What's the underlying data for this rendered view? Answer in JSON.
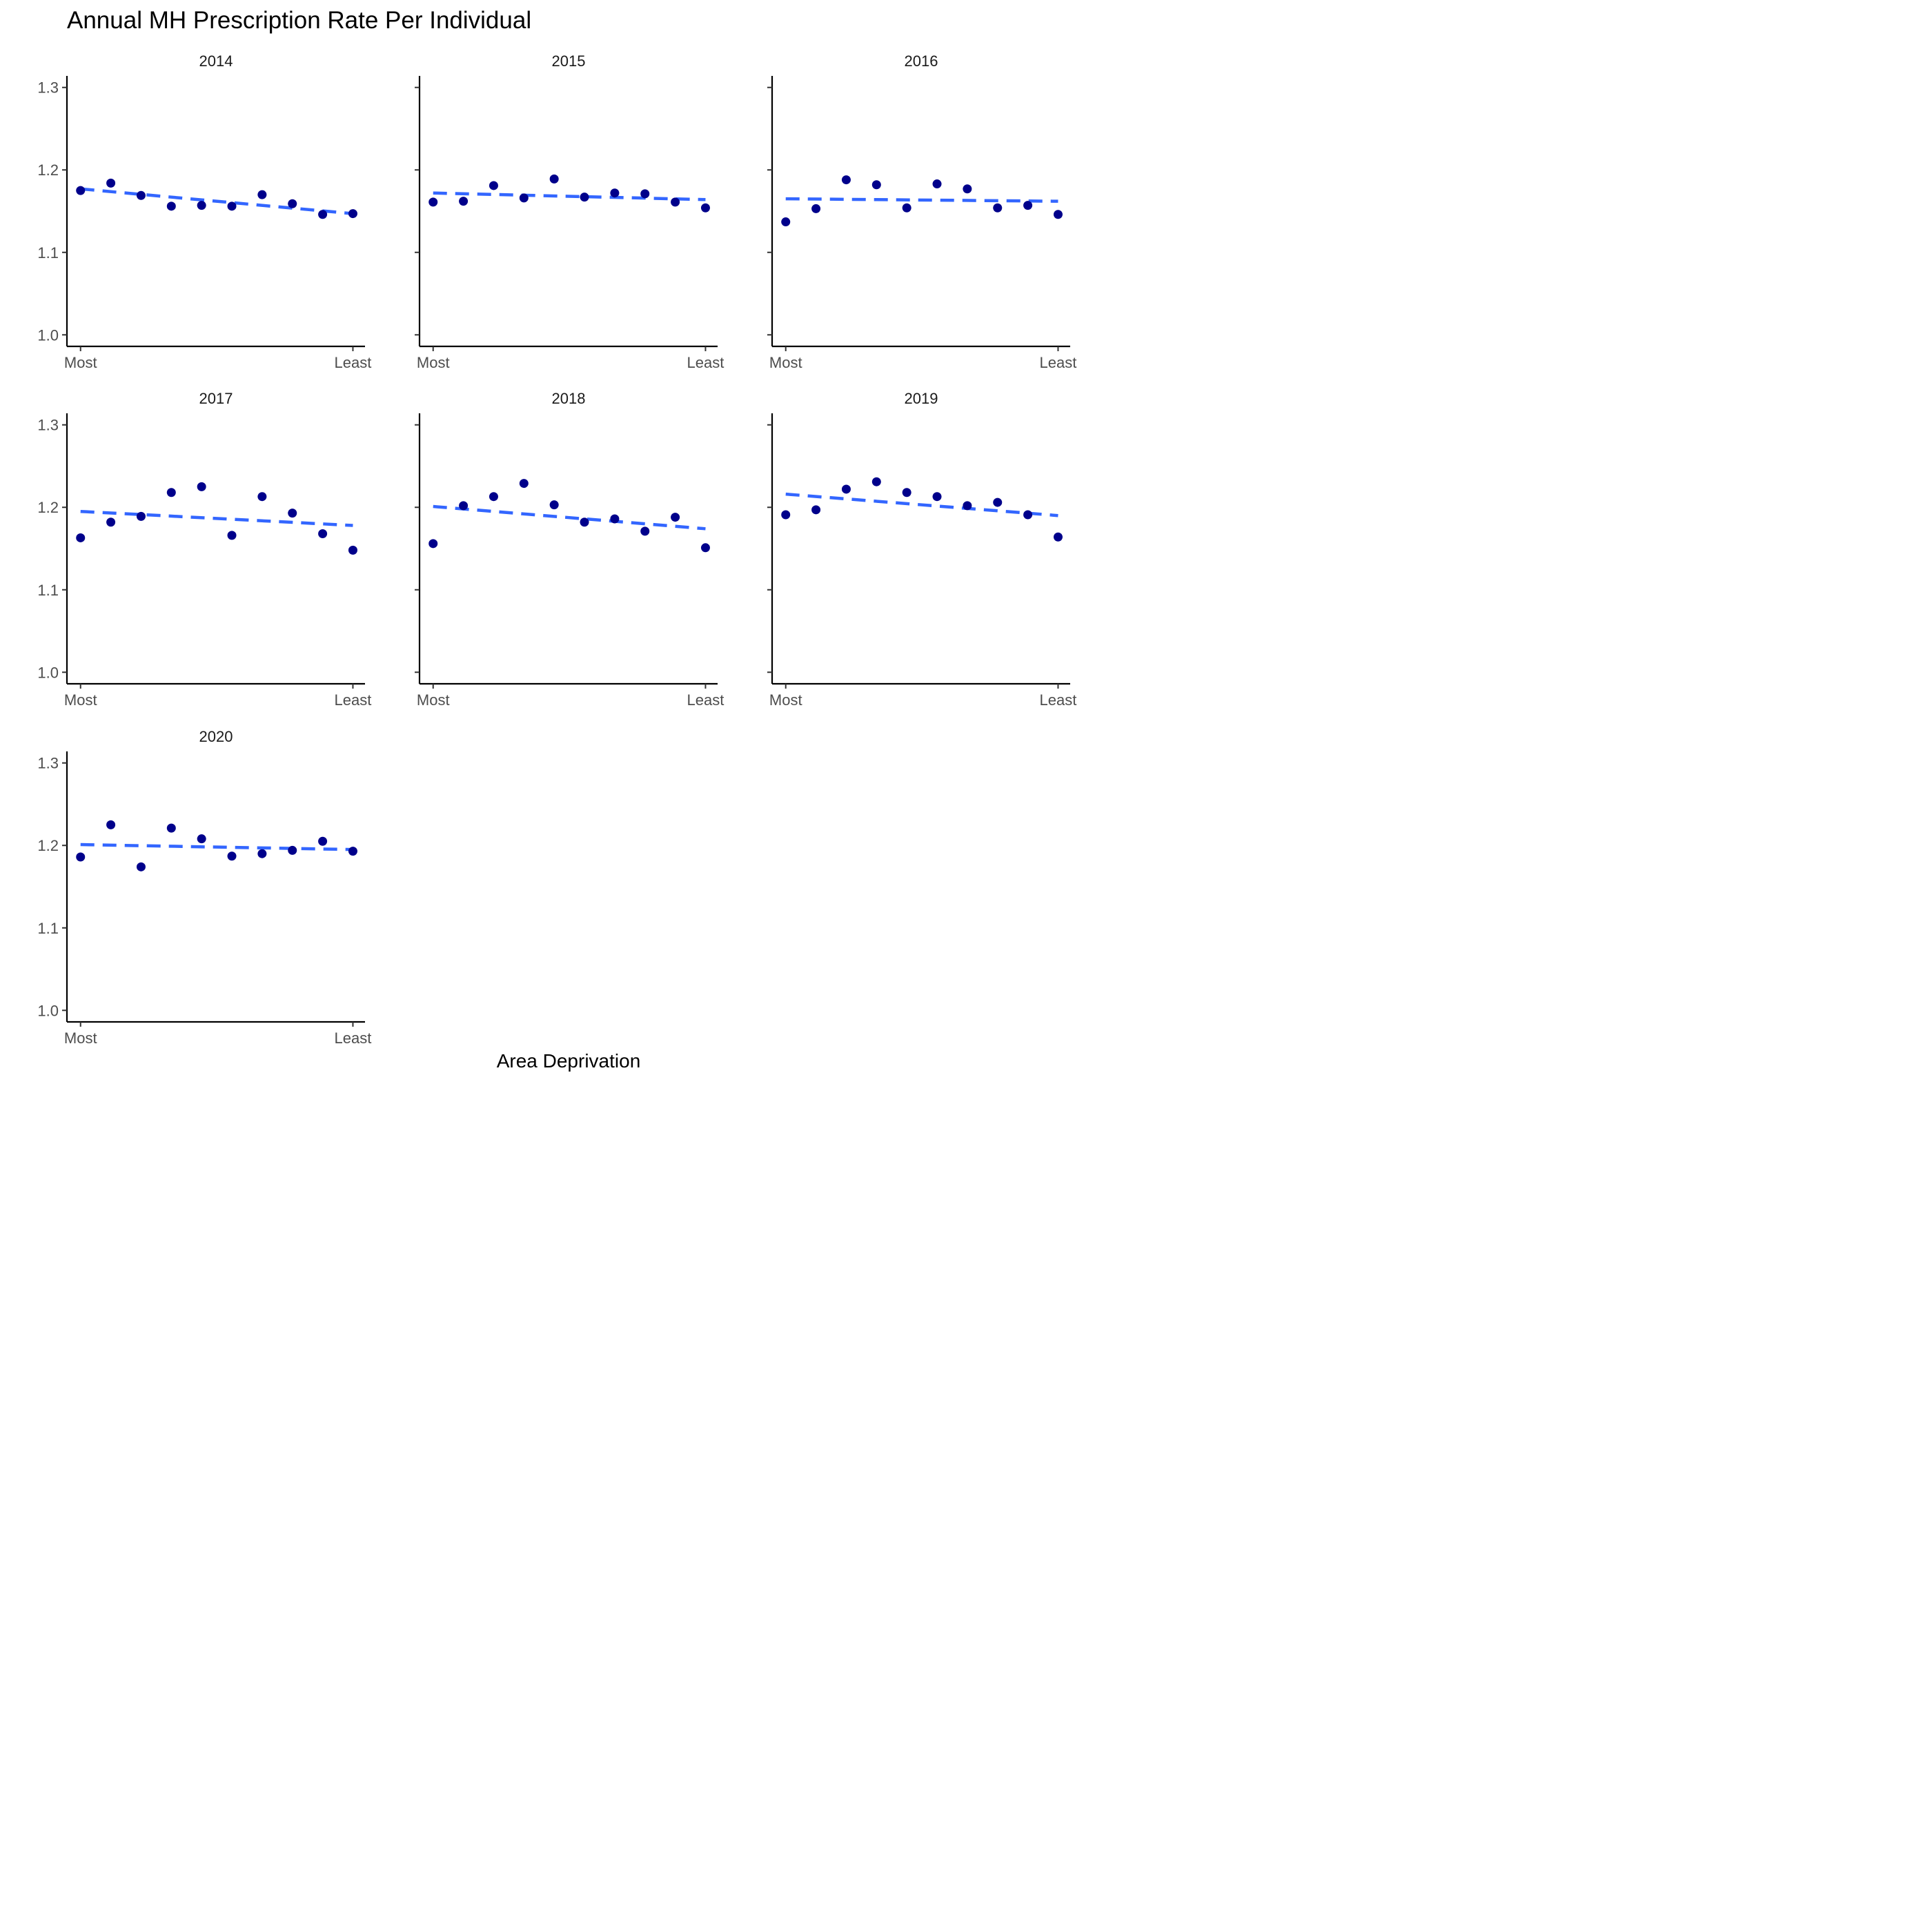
{
  "chart_data": {
    "type": "scatter",
    "title": "Annual MH Prescription Rate Per Individual",
    "xlabel": "Area Deprivation",
    "ylabel": "",
    "x": [
      1,
      2,
      3,
      4,
      5,
      6,
      7,
      8,
      9,
      10
    ],
    "x_tick_labels": [
      {
        "x": 1,
        "label": "Most"
      },
      {
        "x": 10,
        "label": "Least"
      }
    ],
    "y_ticks": [
      "1.0",
      "1.1",
      "1.2",
      "1.3"
    ],
    "ylim": [
      0.986,
      1.314
    ],
    "xlim": [
      0.55,
      10.4
    ],
    "colors": {
      "points": "#00008b",
      "trend": "#3366ff"
    },
    "panels": [
      {
        "label": "2014",
        "values": [
          1.175,
          1.184,
          1.169,
          1.156,
          1.157,
          1.156,
          1.17,
          1.159,
          1.146,
          1.147
        ],
        "trend": [
          1.177,
          1.147
        ]
      },
      {
        "label": "2015",
        "values": [
          1.161,
          1.162,
          1.181,
          1.166,
          1.189,
          1.167,
          1.172,
          1.171,
          1.161,
          1.154
        ],
        "trend": [
          1.172,
          1.164
        ]
      },
      {
        "label": "2016",
        "values": [
          1.137,
          1.153,
          1.188,
          1.182,
          1.154,
          1.183,
          1.177,
          1.154,
          1.157,
          1.146
        ],
        "trend": [
          1.165,
          1.162
        ]
      },
      {
        "label": "2017",
        "values": [
          1.163,
          1.182,
          1.189,
          1.218,
          1.225,
          1.166,
          1.213,
          1.193,
          1.168,
          1.148
        ],
        "trend": [
          1.195,
          1.178
        ]
      },
      {
        "label": "2018",
        "values": [
          1.156,
          1.202,
          1.213,
          1.229,
          1.203,
          1.182,
          1.186,
          1.171,
          1.188,
          1.151
        ],
        "trend": [
          1.201,
          1.174
        ]
      },
      {
        "label": "2019",
        "values": [
          1.191,
          1.197,
          1.222,
          1.231,
          1.218,
          1.213,
          1.202,
          1.206,
          1.191,
          1.164
        ],
        "trend": [
          1.216,
          1.19
        ]
      },
      {
        "label": "2020",
        "values": [
          1.186,
          1.225,
          1.174,
          1.221,
          1.208,
          1.187,
          1.19,
          1.194,
          1.205,
          1.193
        ],
        "trend": [
          1.201,
          1.195
        ]
      }
    ]
  }
}
